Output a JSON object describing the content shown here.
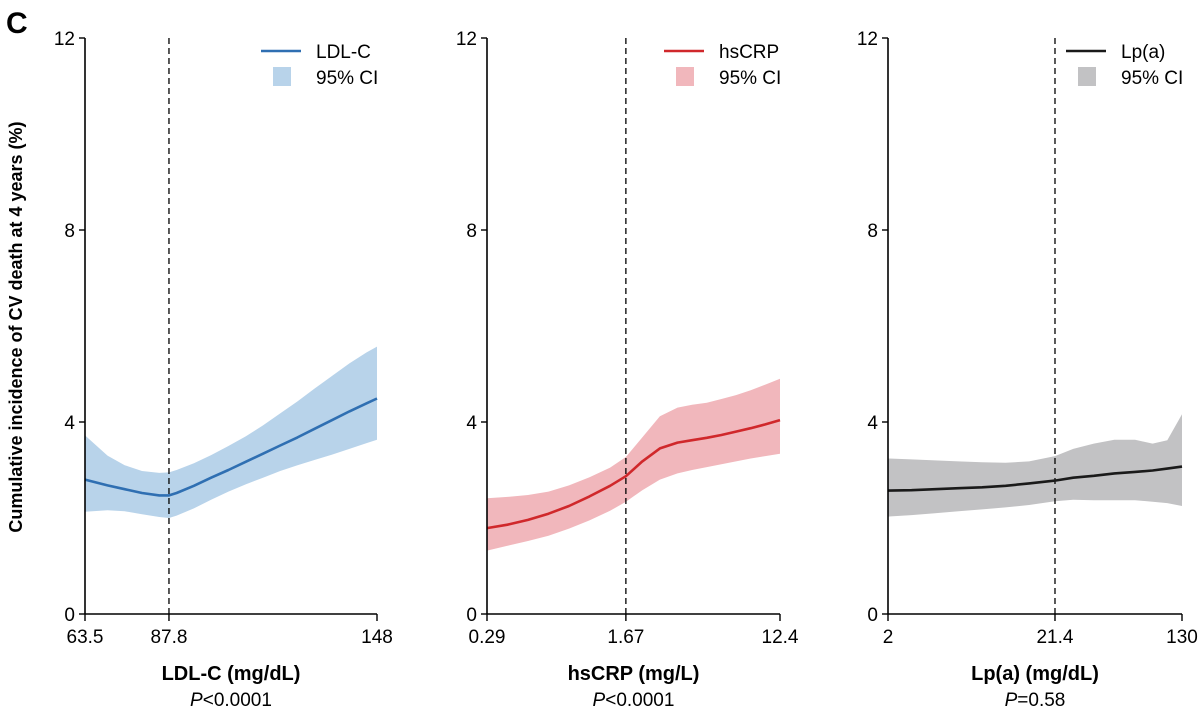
{
  "panel_letter": "C",
  "y_axis_label": "Cumulative incidence of CV death at 4 years (%)",
  "chart_data": [
    {
      "type": "line",
      "series_name": "LDL-C",
      "ci_label": "95% CI",
      "color": "#2f6fb2",
      "ci_color": "#b8d3ea",
      "xlabel": "LDL-C (mg/dL)",
      "p_prefix": "P",
      "p_value": "<0.0001",
      "xlim": [
        63.5,
        148
      ],
      "xticks": [
        63.5,
        87.8,
        148
      ],
      "xtick_labels": [
        "63.5",
        "87.8",
        "148"
      ],
      "reference_x": 87.8,
      "ylim": [
        0,
        12
      ],
      "yticks": [
        0,
        4,
        8,
        12
      ],
      "ytick_labels": [
        "0",
        "4",
        "8",
        "12"
      ],
      "x": [
        63.5,
        70,
        75,
        80,
        85,
        87.8,
        90,
        95,
        100,
        105,
        110,
        115,
        120,
        125,
        130,
        135,
        140,
        145,
        148
      ],
      "y": [
        2.8,
        2.68,
        2.6,
        2.52,
        2.47,
        2.47,
        2.52,
        2.67,
        2.84,
        3.0,
        3.17,
        3.34,
        3.51,
        3.68,
        3.86,
        4.04,
        4.22,
        4.39,
        4.49
      ],
      "lower": [
        2.13,
        2.16,
        2.14,
        2.08,
        2.02,
        2.0,
        2.05,
        2.2,
        2.38,
        2.55,
        2.7,
        2.84,
        2.98,
        3.1,
        3.21,
        3.32,
        3.44,
        3.56,
        3.63
      ],
      "upper": [
        3.72,
        3.3,
        3.1,
        2.98,
        2.94,
        2.95,
        3.0,
        3.14,
        3.31,
        3.5,
        3.7,
        3.93,
        4.18,
        4.43,
        4.7,
        4.96,
        5.22,
        5.45,
        5.57
      ]
    },
    {
      "type": "line",
      "series_name": "hsCRP",
      "ci_label": "95% CI",
      "color": "#d0282b",
      "ci_color": "#f1b7bc",
      "xlabel": "hsCRP (mg/L)",
      "p_prefix": "P",
      "p_value": "<0.0001",
      "xlim": [
        0.29,
        12.4
      ],
      "xticks": [
        0.29,
        1.67,
        12.4
      ],
      "xtick_labels": [
        "0.29",
        "1.67",
        "12.4"
      ],
      "tick_positions": [
        0,
        0.474,
        1
      ],
      "reference_x": 1.67,
      "ylim": [
        0,
        12
      ],
      "yticks": [
        0,
        4,
        8,
        12
      ],
      "ytick_labels": [
        "0",
        "4",
        "8",
        "12"
      ],
      "x_frac": [
        0,
        0.07,
        0.14,
        0.21,
        0.28,
        0.35,
        0.42,
        0.474,
        0.53,
        0.59,
        0.65,
        0.7,
        0.75,
        0.8,
        0.85,
        0.9,
        0.95,
        1.0
      ],
      "y": [
        1.79,
        1.86,
        1.96,
        2.09,
        2.25,
        2.45,
        2.67,
        2.87,
        3.18,
        3.45,
        3.57,
        3.62,
        3.67,
        3.73,
        3.8,
        3.87,
        3.95,
        4.04
      ],
      "lower": [
        1.32,
        1.42,
        1.52,
        1.63,
        1.78,
        1.95,
        2.15,
        2.34,
        2.58,
        2.8,
        2.93,
        3.0,
        3.06,
        3.12,
        3.18,
        3.24,
        3.29,
        3.34
      ],
      "upper": [
        2.41,
        2.44,
        2.48,
        2.55,
        2.68,
        2.85,
        3.05,
        3.27,
        3.68,
        4.12,
        4.3,
        4.36,
        4.4,
        4.48,
        4.56,
        4.66,
        4.78,
        4.9
      ]
    },
    {
      "type": "line",
      "series_name": "Lp(a)",
      "ci_label": "95% CI",
      "color": "#1a1a1a",
      "ci_color": "#c2c2c4",
      "xlabel": "Lp(a) (mg/dL)",
      "p_prefix": "P",
      "p_value": "=0.58",
      "xlim": [
        2,
        130
      ],
      "xticks": [
        2,
        21.4,
        130
      ],
      "xtick_labels": [
        "2",
        "21.4",
        "130"
      ],
      "tick_positions": [
        0,
        0.568,
        1
      ],
      "reference_x": 21.4,
      "ylim": [
        0,
        12
      ],
      "yticks": [
        0,
        4,
        8,
        12
      ],
      "ytick_labels": [
        "0",
        "4",
        "8",
        "12"
      ],
      "x_frac": [
        0,
        0.08,
        0.16,
        0.24,
        0.32,
        0.4,
        0.48,
        0.568,
        0.63,
        0.7,
        0.77,
        0.84,
        0.9,
        0.95,
        1.0
      ],
      "y": [
        2.57,
        2.58,
        2.6,
        2.62,
        2.64,
        2.67,
        2.72,
        2.78,
        2.84,
        2.88,
        2.93,
        2.96,
        2.99,
        3.03,
        3.07
      ],
      "lower": [
        2.03,
        2.06,
        2.1,
        2.14,
        2.18,
        2.22,
        2.27,
        2.35,
        2.38,
        2.37,
        2.37,
        2.37,
        2.34,
        2.31,
        2.25
      ],
      "upper": [
        3.24,
        3.22,
        3.2,
        3.18,
        3.16,
        3.15,
        3.18,
        3.29,
        3.44,
        3.55,
        3.63,
        3.63,
        3.55,
        3.62,
        4.16
      ]
    }
  ]
}
